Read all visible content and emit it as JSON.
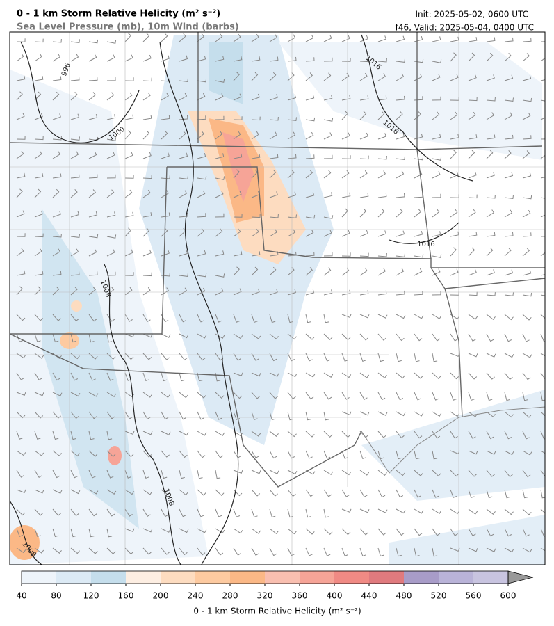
{
  "header": {
    "title": "0 - 1 km Storm Relative Helicity (m² s⁻²)",
    "subtitle": "Sea Level Pressure (mb), 10m Wind (barbs)",
    "init": "Init: 2025-05-02, 0600 UTC",
    "valid": "f46, Valid: 2025-05-04, 0400 UTC"
  },
  "contour_labels": [
    "996",
    "1000",
    "1008",
    "1008",
    "1008",
    "1016",
    "1016",
    "1016"
  ],
  "colorbar": {
    "label": "0 - 1 km Storm Relative Helicity (m² s⁻²)",
    "ticks": [
      40,
      80,
      120,
      160,
      200,
      240,
      280,
      320,
      360,
      400,
      440,
      480,
      520,
      560,
      600
    ],
    "colors": [
      "#eef4fa",
      "#dceaf5",
      "#c5deec",
      "#fdeee2",
      "#fddcc0",
      "#fdcaa0",
      "#fbb886",
      "#f9bfb0",
      "#f6a497",
      "#f08a84",
      "#e07a7e",
      "#a89cc8",
      "#b9b3d8",
      "#c8c4e0"
    ],
    "over_color": "#999999"
  }
}
